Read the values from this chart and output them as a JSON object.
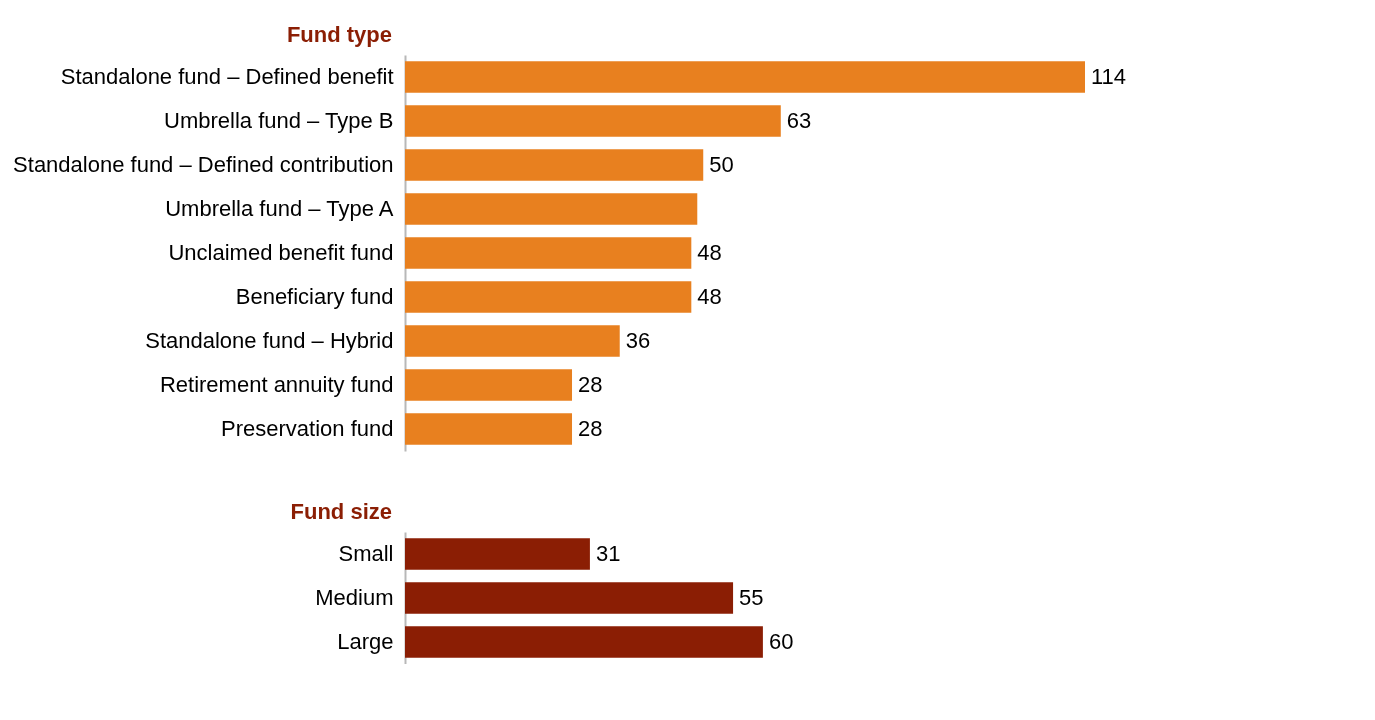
{
  "chart_data": [
    {
      "type": "bar",
      "orientation": "horizontal",
      "title": "Fund type",
      "categories": [
        "Standalone fund – Defined benefit",
        "Umbrella fund – Type B",
        "Standalone fund – Defined contribution",
        "Umbrella fund – Type A",
        "Unclaimed benefit fund",
        "Beneficiary fund",
        "Standalone fund – Hybrid",
        "Retirement annuity fund",
        "Preservation fund"
      ],
      "values": [
        114,
        63,
        50,
        49,
        48,
        48,
        36,
        28,
        28
      ],
      "value_labels": [
        "114",
        "63",
        "50",
        null,
        "48",
        "48",
        "36",
        "28",
        "28"
      ],
      "color": "#e8801f",
      "tick_labels": "y"
    },
    {
      "type": "bar",
      "orientation": "horizontal",
      "title": "Fund size",
      "categories": [
        "Small",
        "Medium",
        "Large"
      ],
      "values": [
        31,
        55,
        60
      ],
      "value_labels": [
        "31",
        "55",
        "60"
      ],
      "color": "#8b1e04",
      "tick_labels": "y"
    }
  ]
}
